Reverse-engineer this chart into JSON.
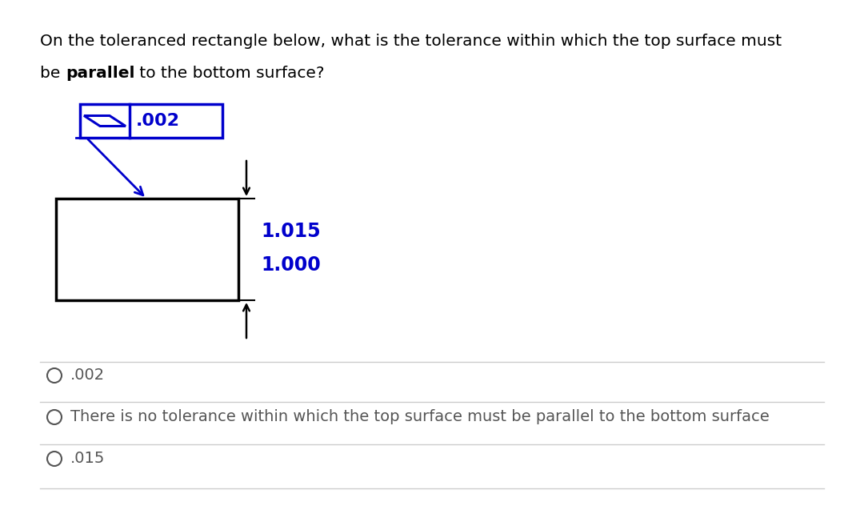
{
  "bg_color": "#ffffff",
  "q_line1": "On the toleranced rectangle below, what is the tolerance within which the top surface must",
  "q_line2_pre": "be ",
  "q_line2_bold": "parallel",
  "q_line2_post": " to the bottom surface?",
  "fc_value": ".002",
  "dim_top": "1.015",
  "dim_bottom": "1.000",
  "options": [
    ".002",
    "There is no tolerance within which the top surface must be parallel to the bottom surface",
    ".015"
  ],
  "blue": "#0000cc",
  "black": "#000000",
  "gray_text": "#555555",
  "sep_color": "#cccccc",
  "figw": 10.8,
  "figh": 6.37,
  "dpi": 100
}
